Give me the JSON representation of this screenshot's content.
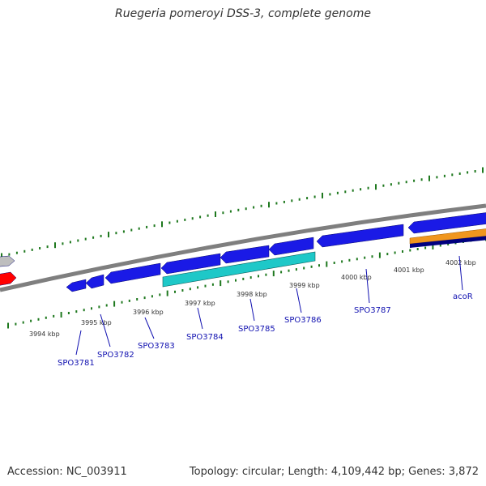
{
  "title": "Ruegeria pomeroyi DSS-3, complete genome",
  "footer": {
    "accession": "Accession: NC_003911",
    "topology": "Topology: circular; Length: 4,109,442 bp; Genes: 3,872"
  },
  "colors": {
    "backbone": "#7f7f7f",
    "forward_gene": "#1a1ae6",
    "reverse_gene": "#1ec8c8",
    "highlight_orange": "#f0961e",
    "highlight_navy": "#00007f",
    "red_gene": "#ff0000",
    "gray_gene": "#bebebe",
    "tick": "#1e781e",
    "label_blue": "#1010b0"
  },
  "scale_labels": [
    "3994 kbp",
    "3995 kbp",
    "3996 kbp",
    "3997 kbp",
    "3998 kbp",
    "3999 kbp",
    "4000 kbp",
    "4001 kbp",
    "4002 kbp"
  ],
  "gene_labels": [
    "SPO3781",
    "SPO3782",
    "SPO3783",
    "SPO3784",
    "SPO3785",
    "SPO3786",
    "SPO3787",
    "acoR"
  ]
}
